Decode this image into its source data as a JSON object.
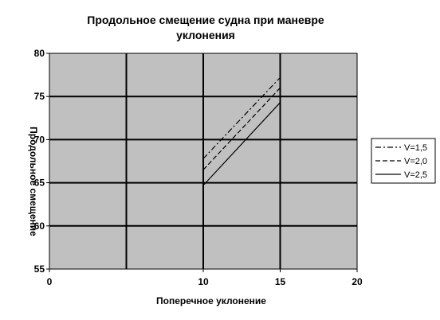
{
  "chart_data": {
    "type": "line",
    "title_lines": [
      "Продольное смещение судна при маневре",
      "уклонения"
    ],
    "xlabel": "Поперечное уклонение",
    "ylabel": "Продольное смещение",
    "xlim": [
      0,
      20
    ],
    "ylim": [
      55,
      80
    ],
    "xticks": [
      0,
      10,
      15,
      20
    ],
    "xtick_labels": [
      "0",
      "10",
      "15",
      "20"
    ],
    "yticks": [
      55,
      60,
      65,
      70,
      75,
      80
    ],
    "ytick_labels": [
      "55",
      "60",
      "65",
      "70",
      "75",
      "80"
    ],
    "x_gridlines": [
      5,
      10,
      15,
      20
    ],
    "grid": true,
    "plot_background": "#c0c0c0",
    "legend_position": "right",
    "series": [
      {
        "name": "V=1,5",
        "dash": "dashdot",
        "x": [
          10,
          15
        ],
        "y": [
          67.8,
          77.2
        ]
      },
      {
        "name": "V=2,0",
        "dash": "dashed",
        "x": [
          10,
          15
        ],
        "y": [
          66.5,
          76.0
        ]
      },
      {
        "name": "V=2,5",
        "dash": "solid",
        "x": [
          10,
          15
        ],
        "y": [
          64.7,
          74.3
        ]
      }
    ]
  }
}
